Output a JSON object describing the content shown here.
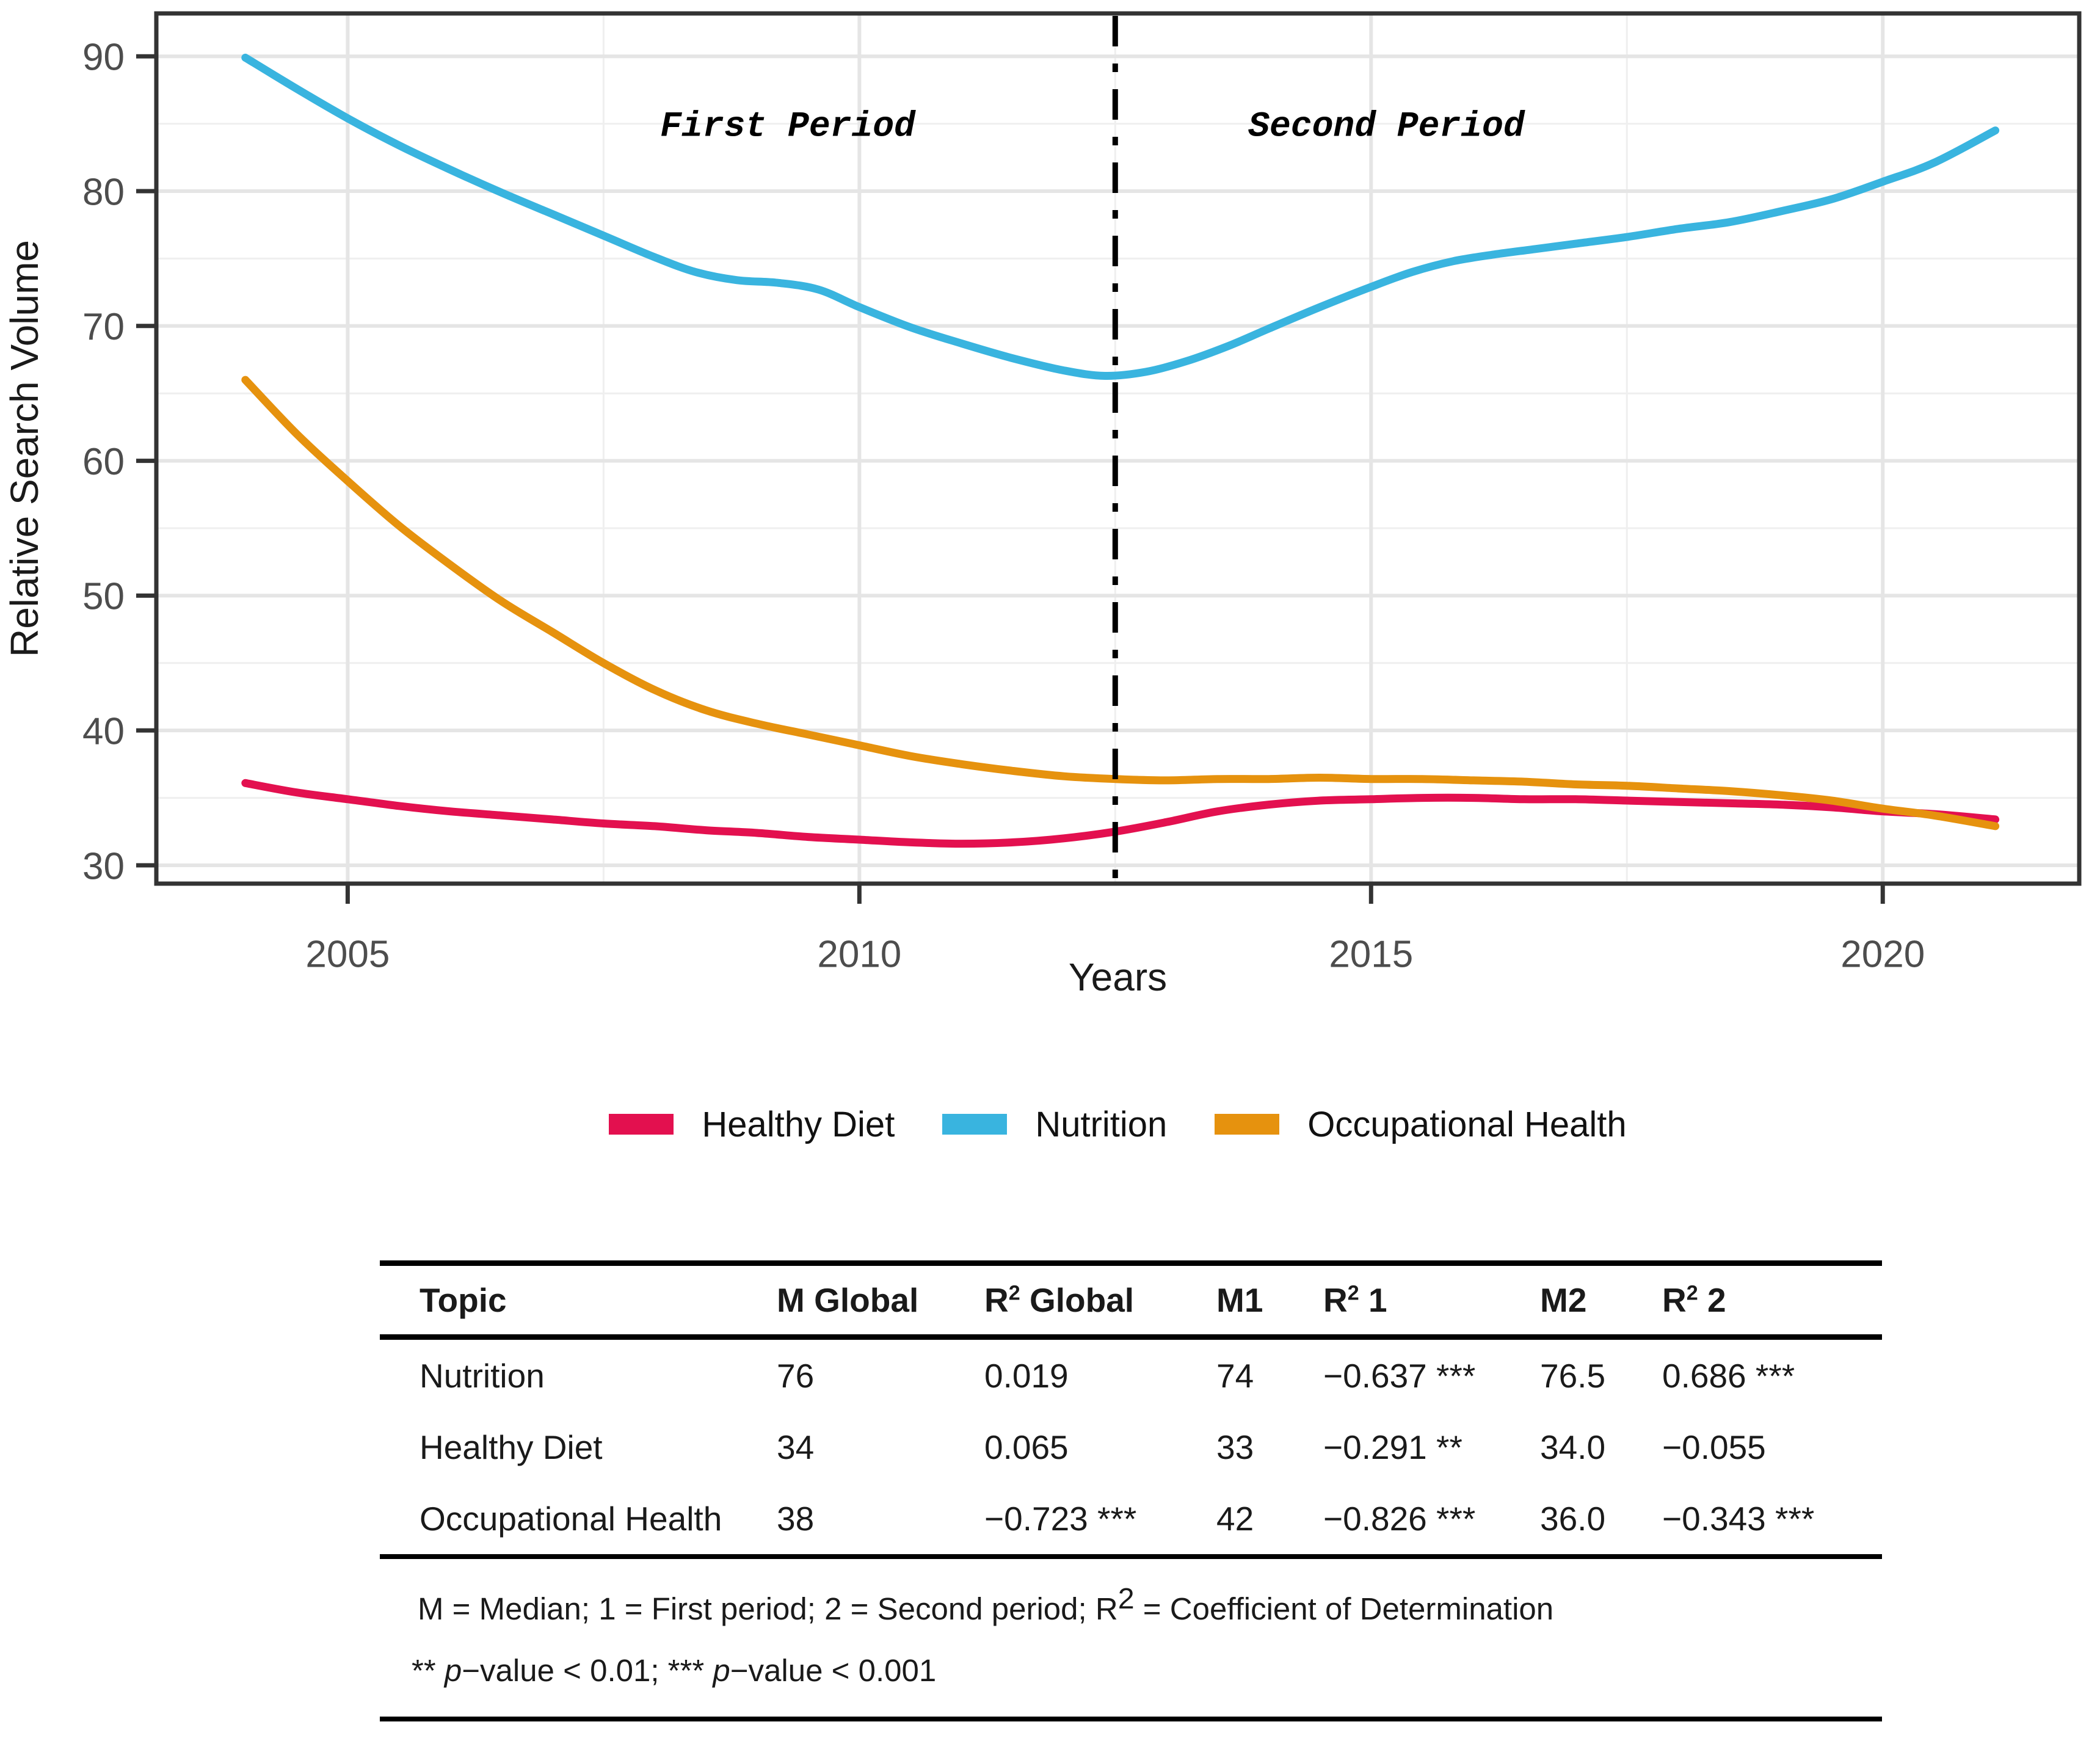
{
  "chart_data": {
    "type": "line",
    "title": "",
    "xlabel": "Years",
    "ylabel": "Relative Search Volume",
    "grid": "on",
    "legend_position": "bottom",
    "x_domain": [
      2003.13,
      2021.92
    ],
    "y_domain": [
      28.64,
      93.18
    ],
    "x_major_ticks": [
      2005,
      2010,
      2015,
      2020
    ],
    "x_major_tick_labels": [
      "2005",
      "2010",
      "2015",
      "2020"
    ],
    "x_minor_ticks": [
      2007.5,
      2012.5,
      2017.5
    ],
    "y_major_ticks": [
      30,
      40,
      50,
      60,
      70,
      80,
      90
    ],
    "y_major_tick_labels": [
      "30",
      "40",
      "50",
      "60",
      "70",
      "80",
      "90"
    ],
    "y_minor_ticks": [
      35,
      45,
      55,
      65,
      75,
      85
    ],
    "divider_x": 2012.5,
    "divider_style": "dashdot",
    "annotations": [
      {
        "text": "First Period",
        "x": 2009.3,
        "y": 85
      },
      {
        "text": "Second Period",
        "x": 2015.15,
        "y": 85
      }
    ],
    "series": [
      {
        "name": "Healthy Diet",
        "color": "#E3104F",
        "points": [
          [
            2004.0,
            36.1
          ],
          [
            2004.5,
            35.4
          ],
          [
            2005.0,
            34.9
          ],
          [
            2005.5,
            34.4
          ],
          [
            2006.0,
            34.0
          ],
          [
            2006.5,
            33.7
          ],
          [
            2007.0,
            33.4
          ],
          [
            2007.5,
            33.1
          ],
          [
            2008.0,
            32.9
          ],
          [
            2008.5,
            32.6
          ],
          [
            2009.0,
            32.4
          ],
          [
            2009.5,
            32.1
          ],
          [
            2010.0,
            31.9
          ],
          [
            2010.5,
            31.7
          ],
          [
            2011.0,
            31.6
          ],
          [
            2011.5,
            31.7
          ],
          [
            2012.0,
            32.0
          ],
          [
            2012.5,
            32.5
          ],
          [
            2013.0,
            33.2
          ],
          [
            2013.5,
            34.0
          ],
          [
            2014.0,
            34.5
          ],
          [
            2014.5,
            34.8
          ],
          [
            2015.0,
            34.9
          ],
          [
            2015.5,
            35.0
          ],
          [
            2016.0,
            35.0
          ],
          [
            2016.5,
            34.9
          ],
          [
            2017.0,
            34.9
          ],
          [
            2017.5,
            34.8
          ],
          [
            2018.0,
            34.7
          ],
          [
            2018.5,
            34.6
          ],
          [
            2019.0,
            34.5
          ],
          [
            2019.5,
            34.3
          ],
          [
            2020.0,
            34.0
          ],
          [
            2020.5,
            33.8
          ],
          [
            2021.1,
            33.4
          ]
        ]
      },
      {
        "name": "Nutrition",
        "color": "#39B4DF",
        "points": [
          [
            2004.0,
            89.9
          ],
          [
            2004.5,
            87.6
          ],
          [
            2005.0,
            85.4
          ],
          [
            2005.5,
            83.4
          ],
          [
            2006.0,
            81.6
          ],
          [
            2006.5,
            79.9
          ],
          [
            2007.0,
            78.3
          ],
          [
            2007.5,
            76.7
          ],
          [
            2008.0,
            75.1
          ],
          [
            2008.4,
            74.0
          ],
          [
            2008.8,
            73.4
          ],
          [
            2009.2,
            73.2
          ],
          [
            2009.6,
            72.7
          ],
          [
            2010.0,
            71.4
          ],
          [
            2010.5,
            69.9
          ],
          [
            2011.0,
            68.7
          ],
          [
            2011.5,
            67.6
          ],
          [
            2012.0,
            66.7
          ],
          [
            2012.4,
            66.3
          ],
          [
            2012.8,
            66.6
          ],
          [
            2013.2,
            67.4
          ],
          [
            2013.6,
            68.5
          ],
          [
            2014.0,
            69.8
          ],
          [
            2014.5,
            71.4
          ],
          [
            2015.0,
            72.9
          ],
          [
            2015.4,
            74.0
          ],
          [
            2015.8,
            74.8
          ],
          [
            2016.2,
            75.3
          ],
          [
            2016.6,
            75.7
          ],
          [
            2017.0,
            76.1
          ],
          [
            2017.5,
            76.6
          ],
          [
            2018.0,
            77.2
          ],
          [
            2018.5,
            77.7
          ],
          [
            2019.0,
            78.5
          ],
          [
            2019.5,
            79.4
          ],
          [
            2020.0,
            80.7
          ],
          [
            2020.5,
            82.1
          ],
          [
            2021.1,
            84.5
          ]
        ]
      },
      {
        "name": "Occupational Health",
        "color": "#E6920E",
        "points": [
          [
            2004.0,
            66.0
          ],
          [
            2004.5,
            62.0
          ],
          [
            2005.0,
            58.5
          ],
          [
            2005.5,
            55.2
          ],
          [
            2006.0,
            52.3
          ],
          [
            2006.5,
            49.6
          ],
          [
            2007.0,
            47.3
          ],
          [
            2007.5,
            45.0
          ],
          [
            2008.0,
            43.0
          ],
          [
            2008.5,
            41.5
          ],
          [
            2009.0,
            40.5
          ],
          [
            2009.5,
            39.7
          ],
          [
            2010.0,
            38.9
          ],
          [
            2010.5,
            38.1
          ],
          [
            2011.0,
            37.5
          ],
          [
            2011.5,
            37.0
          ],
          [
            2012.0,
            36.6
          ],
          [
            2012.5,
            36.4
          ],
          [
            2013.0,
            36.3
          ],
          [
            2013.5,
            36.4
          ],
          [
            2014.0,
            36.4
          ],
          [
            2014.5,
            36.5
          ],
          [
            2015.0,
            36.4
          ],
          [
            2015.5,
            36.4
          ],
          [
            2016.0,
            36.3
          ],
          [
            2016.5,
            36.2
          ],
          [
            2017.0,
            36.0
          ],
          [
            2017.5,
            35.9
          ],
          [
            2018.0,
            35.7
          ],
          [
            2018.5,
            35.5
          ],
          [
            2019.0,
            35.2
          ],
          [
            2019.5,
            34.8
          ],
          [
            2020.0,
            34.2
          ],
          [
            2020.5,
            33.7
          ],
          [
            2021.1,
            32.9
          ]
        ]
      }
    ]
  },
  "legend": {
    "items": [
      {
        "label": "Healthy Diet",
        "color": "#E3104F"
      },
      {
        "label": "Nutrition",
        "color": "#39B4DF"
      },
      {
        "label": "Occupational Health",
        "color": "#E6920E"
      }
    ]
  },
  "table": {
    "headers": [
      [
        {
          "t": "Topic"
        }
      ],
      [
        {
          "t": "M Global"
        }
      ],
      [
        {
          "t": "R"
        },
        {
          "t": "2",
          "style": "sup"
        },
        {
          "t": " Global"
        }
      ],
      [
        {
          "t": "M1"
        }
      ],
      [
        {
          "t": "R"
        },
        {
          "t": "2",
          "style": "sup"
        },
        {
          "t": " 1"
        }
      ],
      [
        {
          "t": "M2"
        }
      ],
      [
        {
          "t": "R"
        },
        {
          "t": "2",
          "style": "sup"
        },
        {
          "t": " 2"
        }
      ]
    ],
    "rows": [
      [
        "Nutrition",
        "76",
        "0.019",
        "74",
        "−0.637 ***",
        "76.5",
        "0.686 ***"
      ],
      [
        "Healthy Diet",
        "34",
        "0.065",
        "33",
        "−0.291 **",
        "34.0",
        "−0.055"
      ],
      [
        "Occupational Health",
        "38",
        "−0.723 ***",
        "42",
        "−0.826 ***",
        "36.0",
        "−0.343 ***"
      ]
    ],
    "footnotes": [
      [
        {
          "t": "M = Median; 1 = First period; 2 = Second period; R"
        },
        {
          "t": "2",
          "style": "sup-lg"
        },
        {
          "t": " = Coefficient of Determination"
        }
      ],
      [
        {
          "t": "** "
        },
        {
          "t": "p",
          "style": "i"
        },
        {
          "t": "−value < 0.01; *** "
        },
        {
          "t": "p",
          "style": "i"
        },
        {
          "t": "−value < 0.001"
        }
      ]
    ]
  },
  "colors": {
    "axis_text": "#4D4D4D",
    "axis_title": "#1A1A1A",
    "panel_border": "#333333",
    "grid_major": "#E5E5E5",
    "grid_minor": "#EFEFEF",
    "divider": "#000000"
  }
}
